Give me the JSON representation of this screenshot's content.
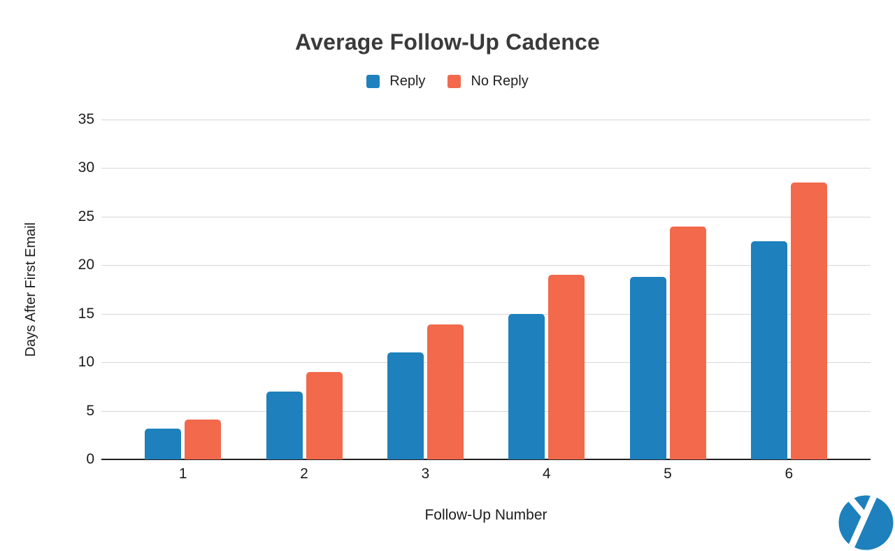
{
  "title": "Average Follow-Up Cadence",
  "chart_data": {
    "type": "bar",
    "categories": [
      "1",
      "2",
      "3",
      "4",
      "5",
      "6"
    ],
    "series": [
      {
        "name": "Reply",
        "color": "#1e80bd",
        "values": [
          3.2,
          7,
          11,
          15,
          18.8,
          22.5
        ]
      },
      {
        "name": "No Reply",
        "color": "#f2694c",
        "values": [
          4.1,
          9,
          13.9,
          19,
          24,
          28.5
        ]
      }
    ],
    "title": "Average Follow-Up Cadence",
    "xlabel": "Follow-Up Number",
    "ylabel": "Days After First Email",
    "ylim": [
      0,
      35
    ],
    "ytick_step": 5,
    "yticks": [
      "0",
      "5",
      "10",
      "15",
      "20",
      "25",
      "30",
      "35"
    ],
    "grid": true,
    "legend_position": "top"
  },
  "logo": {
    "name": "yesware-logo",
    "circle_color": "#1e80bd",
    "glyph": "y",
    "glyph_color": "#ffffff"
  }
}
